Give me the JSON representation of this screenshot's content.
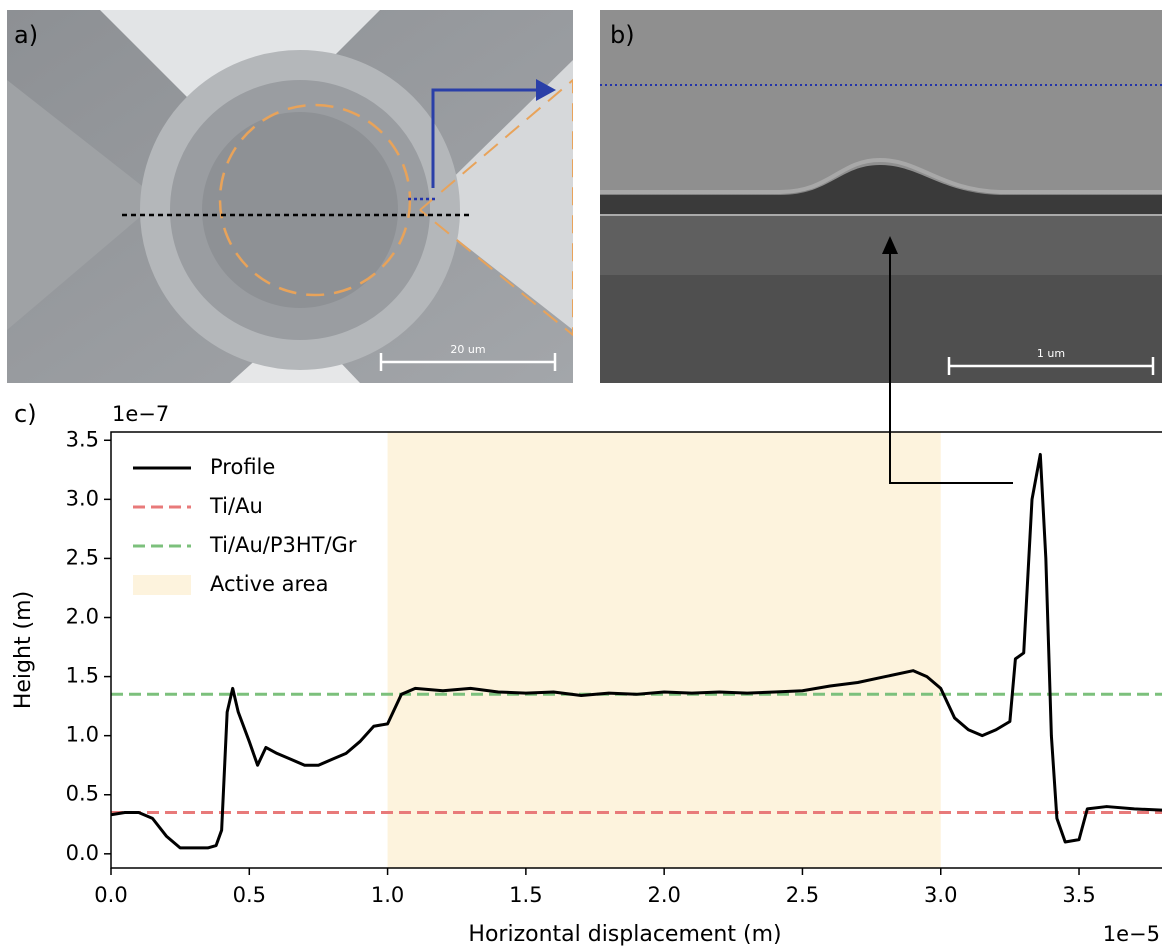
{
  "figure": {
    "panel_a": {
      "label": "a)",
      "scale_bar": "20 um"
    },
    "panel_b": {
      "label": "b)",
      "scale_bar": "1 um"
    },
    "panel_c": {
      "label": "c)"
    }
  },
  "chart_data": {
    "type": "line",
    "x_label": "Horizontal displacement (m)",
    "y_label": "Height (m)",
    "x_offset_label": "1e−5",
    "y_offset_label": "1e−7",
    "xlim": [
      0,
      3.8
    ],
    "ylim": [
      -0.12,
      3.57
    ],
    "xticks": [
      {
        "value": 0,
        "label": "0.0"
      },
      0.5,
      {
        "value": 1,
        "label": "1.0"
      },
      1.5,
      {
        "value": 2,
        "label": "2.0"
      },
      2.5,
      {
        "value": 3,
        "label": "3.0"
      },
      3.5
    ],
    "yticks": [
      {
        "value": 0,
        "label": "0.0"
      },
      0.5,
      {
        "value": 1,
        "label": "1.0"
      },
      1.5,
      {
        "value": 2,
        "label": "2.0"
      },
      2.5,
      {
        "value": 3,
        "label": "3.0"
      },
      3.5
    ],
    "grid": false,
    "legend": "upper left",
    "x": [
      0.0,
      0.05,
      0.1,
      0.15,
      0.2,
      0.25,
      0.3,
      0.35,
      0.38,
      0.4,
      0.42,
      0.44,
      0.46,
      0.5,
      0.53,
      0.56,
      0.6,
      0.65,
      0.7,
      0.75,
      0.8,
      0.85,
      0.9,
      0.95,
      1.0,
      1.05,
      1.1,
      1.2,
      1.3,
      1.4,
      1.5,
      1.6,
      1.7,
      1.8,
      1.9,
      2.0,
      2.1,
      2.2,
      2.3,
      2.4,
      2.5,
      2.6,
      2.7,
      2.8,
      2.9,
      2.95,
      3.0,
      3.05,
      3.1,
      3.15,
      3.2,
      3.25,
      3.27,
      3.3,
      3.33,
      3.36,
      3.38,
      3.4,
      3.42,
      3.45,
      3.5,
      3.53,
      3.6,
      3.7,
      3.8
    ],
    "series": [
      {
        "name": "Profile",
        "color": "#000000",
        "values": [
          0.33,
          0.35,
          0.35,
          0.3,
          0.15,
          0.05,
          0.05,
          0.05,
          0.07,
          0.2,
          1.2,
          1.4,
          1.2,
          0.95,
          0.75,
          0.9,
          0.85,
          0.8,
          0.75,
          0.75,
          0.8,
          0.85,
          0.95,
          1.08,
          1.1,
          1.35,
          1.4,
          1.38,
          1.4,
          1.37,
          1.36,
          1.37,
          1.34,
          1.36,
          1.35,
          1.37,
          1.36,
          1.37,
          1.36,
          1.37,
          1.38,
          1.42,
          1.45,
          1.5,
          1.55,
          1.5,
          1.4,
          1.15,
          1.05,
          1.0,
          1.05,
          1.12,
          1.65,
          1.7,
          3.0,
          3.38,
          2.5,
          1.0,
          0.3,
          0.1,
          0.12,
          0.38,
          0.4,
          0.38,
          0.37
        ]
      }
    ],
    "hlines": [
      {
        "name": "Ti/Au",
        "color": "#e87a7a",
        "value": 0.35
      },
      {
        "name": "Ti/Au/P3HT/Gr",
        "color": "#7cc07c",
        "value": 1.35
      }
    ],
    "spans": [
      {
        "name": "Active area",
        "color": "#fdf3dd",
        "xrange": [
          1.0,
          3.0
        ]
      }
    ]
  }
}
